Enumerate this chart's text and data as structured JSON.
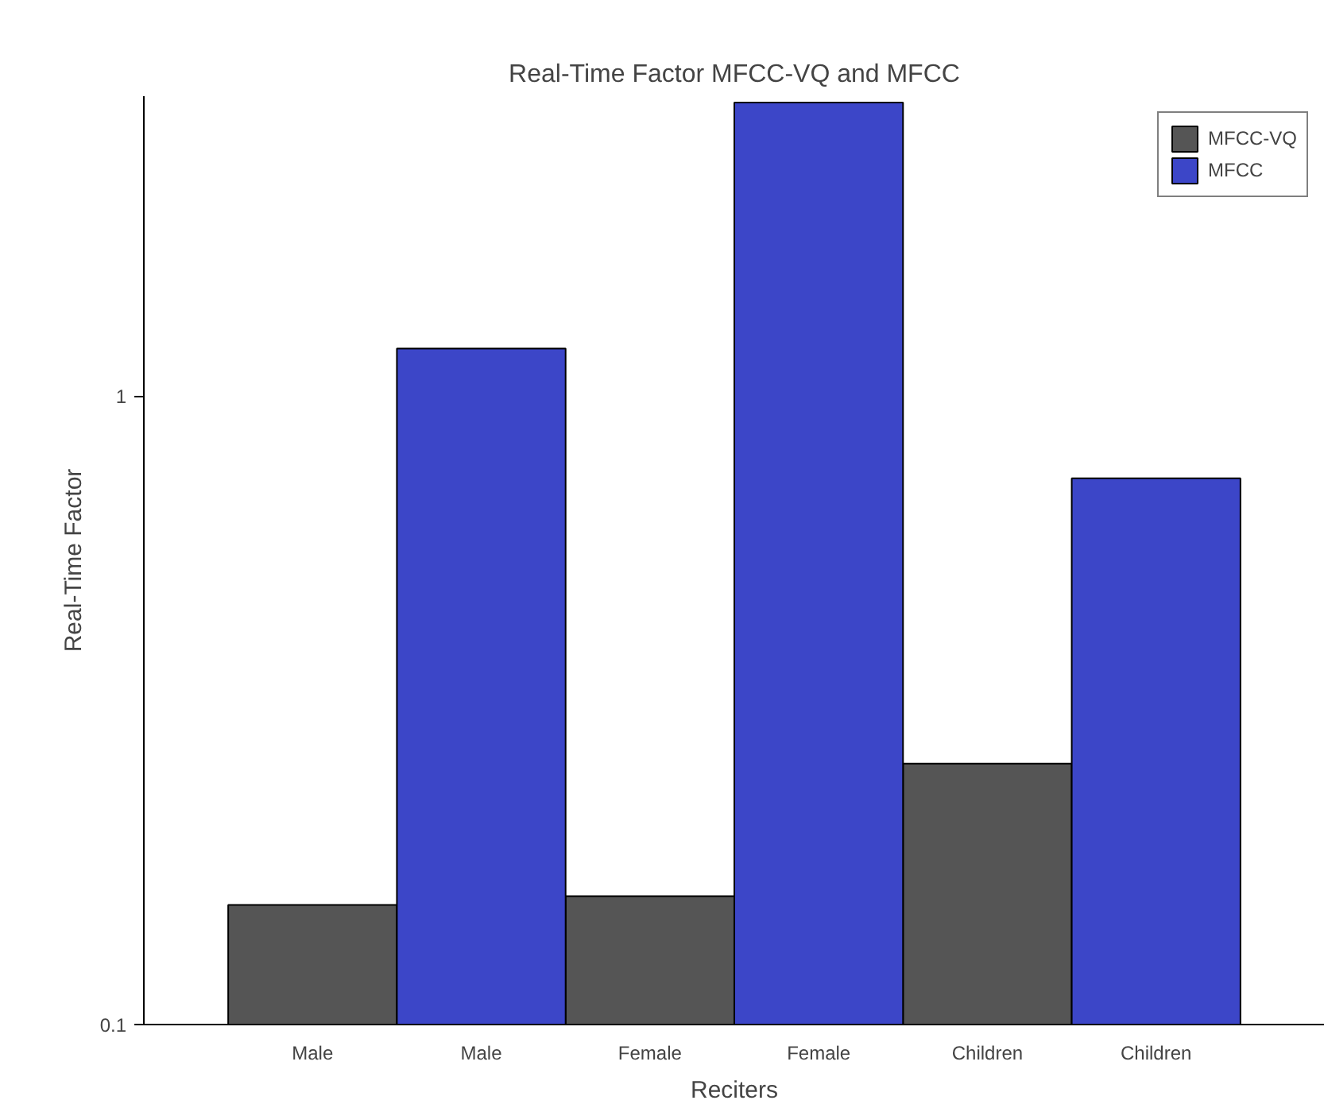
{
  "chart_data": {
    "type": "bar",
    "title": "Real-Time Factor MFCC-VQ and MFCC",
    "xlabel": "Reciters",
    "ylabel": "Real-Time Factor",
    "categories": [
      "Male",
      "Male",
      "Female",
      "Female",
      "Children",
      "Children"
    ],
    "series": [
      {
        "name": "MFCC-VQ",
        "color": "#555555",
        "values": [
          0.155,
          null,
          0.16,
          null,
          0.26,
          null
        ]
      },
      {
        "name": "MFCC",
        "color": "#3c46c8",
        "values": [
          null,
          1.19,
          null,
          2.93,
          null,
          0.74
        ]
      }
    ],
    "log": "y",
    "ylim": [
      0.1,
      3
    ],
    "yticks": [
      0.1,
      1
    ],
    "grid": false,
    "legend": "top right"
  }
}
